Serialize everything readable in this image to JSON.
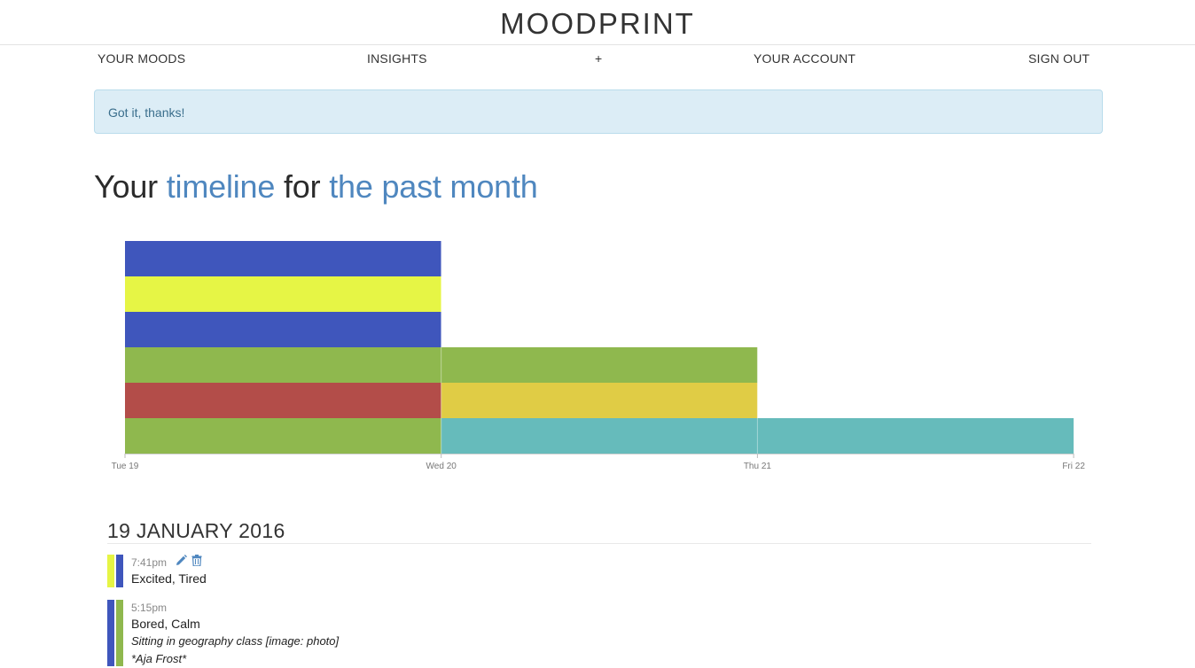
{
  "brand": "MOODPRINT",
  "nav": {
    "your_moods": "YOUR MOODS",
    "insights": "INSIGHTS",
    "add": "+",
    "your_account": "YOUR ACCOUNT",
    "sign_out": "SIGN OUT"
  },
  "alert": "Got it, thanks!",
  "headline": {
    "part1": "Your ",
    "part2": "timeline",
    "part3": " for ",
    "part4": "the past month"
  },
  "colors": {
    "accent": "#4f87bf",
    "tired": "#3f56bc",
    "excited": "#e6f545",
    "calm": "#8fb84e",
    "angry": "#b34d49",
    "happy": "#e0cc45",
    "relaxed": "#66bbbb"
  },
  "chart_data": {
    "type": "bar",
    "x_ticks": [
      "Tue 19",
      "Wed 20",
      "Thu 21",
      "Fri 22"
    ],
    "columns": [
      {
        "day": "Tue 19",
        "stack_bottom_to_top": [
          "#8fb84e",
          "#b34d49",
          "#8fb84e",
          "#3f56bc",
          "#e6f545",
          "#3f56bc"
        ]
      },
      {
        "day": "Wed 20",
        "stack_bottom_to_top": [
          "#66bbbb",
          "#e0cc45",
          "#8fb84e"
        ]
      },
      {
        "day": "Thu 21",
        "stack_bottom_to_top": [
          "#66bbbb"
        ]
      }
    ],
    "grid": false,
    "legend": "none"
  },
  "day": {
    "title": "19 JANUARY 2016",
    "entries": [
      {
        "time": "7:41pm",
        "moods": "Excited, Tired",
        "swatches": [
          "#e6f545",
          "#3f56bc"
        ],
        "notes": []
      },
      {
        "time": "5:15pm",
        "moods": "Bored, Calm",
        "swatches": [
          "#3f56bc",
          "#8fb84e"
        ],
        "notes": [
          "Sitting in geography class [image: photo]",
          "*Aja Frost*"
        ]
      }
    ]
  }
}
